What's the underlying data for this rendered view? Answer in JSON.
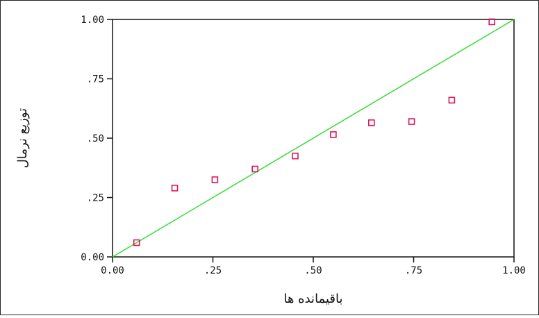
{
  "chart_data": {
    "type": "scatter",
    "title": "",
    "xlabel": "باقیمانده ها",
    "ylabel": "توزیع نرمال",
    "xlim": [
      0.0,
      1.0
    ],
    "ylim": [
      0.0,
      1.0
    ],
    "x_ticks": [
      0.0,
      0.25,
      0.5,
      0.75,
      1.0
    ],
    "y_ticks": [
      0.0,
      0.25,
      0.5,
      0.75,
      1.0
    ],
    "x_tick_labels": [
      "0.00",
      ".25",
      ".50",
      ".75",
      "1.00"
    ],
    "y_tick_labels": [
      "0.00",
      ".25",
      ".50",
      ".75",
      "1.00"
    ],
    "grid": false,
    "legend": "none",
    "reference_line": {
      "from": [
        0.0,
        0.0
      ],
      "to": [
        1.0,
        1.0
      ],
      "color": "#33dd33"
    },
    "marker_color": "#e0135a",
    "points": [
      {
        "x": 0.06,
        "y": 0.06
      },
      {
        "x": 0.155,
        "y": 0.29
      },
      {
        "x": 0.255,
        "y": 0.325
      },
      {
        "x": 0.355,
        "y": 0.37
      },
      {
        "x": 0.455,
        "y": 0.425
      },
      {
        "x": 0.55,
        "y": 0.515
      },
      {
        "x": 0.645,
        "y": 0.565
      },
      {
        "x": 0.745,
        "y": 0.57
      },
      {
        "x": 0.845,
        "y": 0.66
      },
      {
        "x": 0.945,
        "y": 0.99
      }
    ]
  }
}
